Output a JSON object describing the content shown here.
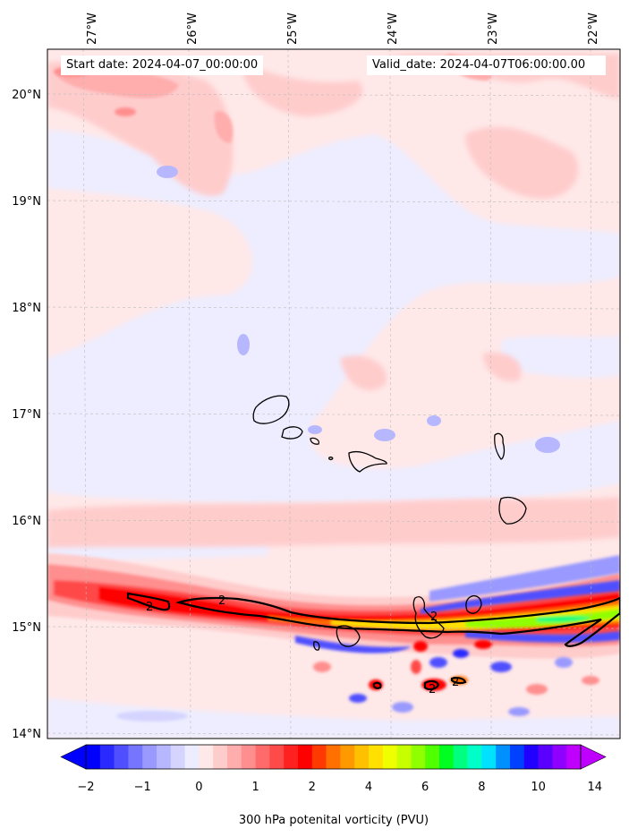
{
  "header": {
    "start_date": "Start date: 2024-04-07_00:00:00",
    "valid_date": "Valid_date: 2024-04-07T06:00:00.00"
  },
  "axes": {
    "lon_labels": [
      "27°W",
      "26°W",
      "25°W",
      "24°W",
      "23°W",
      "22°W"
    ],
    "lat_labels": [
      "20°N",
      "19°N",
      "18°N",
      "17°N",
      "16°N",
      "15°N",
      "14°N"
    ],
    "lon_values": [
      -27,
      -26,
      -25,
      -24,
      -23,
      -22
    ],
    "lat_values": [
      20,
      19,
      18,
      17,
      16,
      15,
      14
    ],
    "lon_range": [
      -27.37,
      -21.7
    ],
    "lat_range": [
      13.95,
      20.42
    ],
    "grid": true
  },
  "colorbar": {
    "label": "300 hPa potenital vorticity (PVU)",
    "tick_labels": [
      "−2",
      "−1",
      "0",
      "1",
      "2",
      "4",
      "6",
      "8",
      "10",
      "14"
    ],
    "levels": [
      -2,
      -1.75,
      -1.5,
      -1.25,
      -1,
      -0.75,
      -0.5,
      -0.25,
      0,
      0.25,
      0.5,
      0.75,
      1,
      1.25,
      1.5,
      1.75,
      2,
      2.5,
      3,
      3.5,
      4,
      4.5,
      5,
      5.5,
      6,
      6.5,
      7,
      7.5,
      8,
      8.5,
      9,
      9.5,
      10,
      11,
      12,
      13,
      14,
      15
    ],
    "colors": [
      "#0000ff",
      "#2a2aff",
      "#4f4fff",
      "#7575ff",
      "#9999ff",
      "#b7b7ff",
      "#d4d4ff",
      "#ededff",
      "#ffe8e8",
      "#ffcccc",
      "#ffadad",
      "#ff8f8f",
      "#ff6b6b",
      "#ff4a4a",
      "#ff2020",
      "#ff0000",
      "#ff3a00",
      "#ff7000",
      "#ff9900",
      "#ffc000",
      "#ffe000",
      "#f0ff00",
      "#c8ff00",
      "#90ff00",
      "#50ff00",
      "#00ff20",
      "#00ff80",
      "#00ffc8",
      "#00e0ff",
      "#0090ff",
      "#0040ff",
      "#2000ff",
      "#5a00ff",
      "#9000ff",
      "#c000ff"
    ],
    "extend_low_color": "#0000ff",
    "extend_high_color": "#c000ff"
  },
  "contour_labels": [
    "2",
    "2",
    "2",
    "2",
    "2"
  ]
}
